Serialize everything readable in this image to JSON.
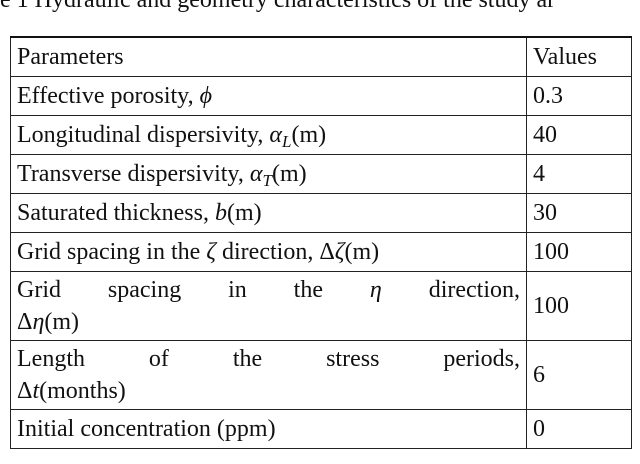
{
  "caption": "e 1 Hydraulic and geometry characteristics of the study ar",
  "table": {
    "header": [
      "Parameters",
      "Values"
    ],
    "rows": [
      {
        "parameter": [
          [
            {
              "text": "Effective porosity, "
            },
            {
              "text": "ϕ",
              "style": "italic"
            }
          ]
        ],
        "value": "0.3"
      },
      {
        "parameter": [
          [
            {
              "text": "Longitudinal dispersivity, "
            },
            {
              "text": "α",
              "style": "italic"
            },
            {
              "text": "L",
              "style": "sub"
            },
            {
              "text": "(m)"
            }
          ]
        ],
        "value": "40"
      },
      {
        "parameter": [
          [
            {
              "text": "Transverse dispersivity, "
            },
            {
              "text": "α",
              "style": "italic"
            },
            {
              "text": "T",
              "style": "sub"
            },
            {
              "text": "(m)"
            }
          ]
        ],
        "value": "4"
      },
      {
        "parameter": [
          [
            {
              "text": "Saturated thickness, "
            },
            {
              "text": "b",
              "style": "italic"
            },
            {
              "text": "(m)"
            }
          ]
        ],
        "value": "30"
      },
      {
        "parameter": [
          [
            {
              "text": "Grid spacing in the "
            },
            {
              "text": "ζ",
              "style": "italic"
            },
            {
              "text": " direction, Δ"
            },
            {
              "text": "ζ",
              "style": "italic"
            },
            {
              "text": "(m)"
            }
          ]
        ],
        "value": "100"
      },
      {
        "parameter": [
          [
            {
              "text": "Grid spacing in the "
            },
            {
              "text": "η",
              "style": "italic"
            },
            {
              "text": " direction,"
            }
          ],
          [
            {
              "text": "Δ"
            },
            {
              "text": "η",
              "style": "italic"
            },
            {
              "text": "(m)"
            }
          ]
        ],
        "value": "100"
      },
      {
        "parameter": [
          [
            {
              "text": "Length of the stress periods,"
            }
          ],
          [
            {
              "text": "Δ"
            },
            {
              "text": "t",
              "style": "italic"
            },
            {
              "text": "(months)"
            }
          ]
        ],
        "value": "6"
      },
      {
        "parameter": [
          [
            {
              "text": "Initial concentration (ppm)"
            }
          ]
        ],
        "value": "0"
      }
    ]
  }
}
